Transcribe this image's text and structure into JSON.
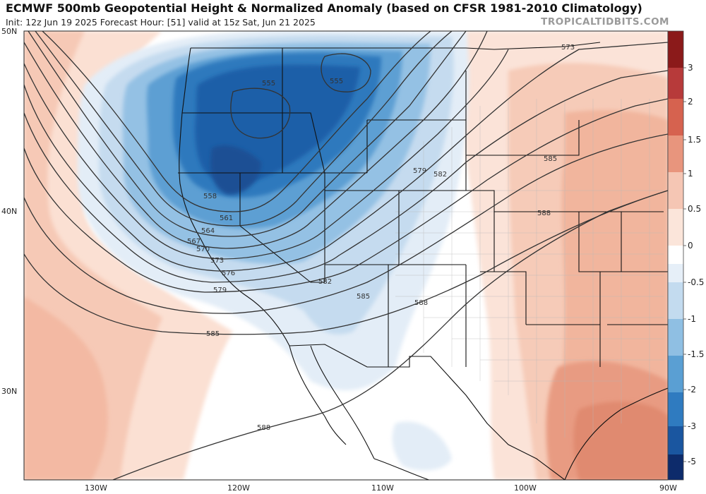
{
  "header": {
    "title": "ECMWF 500mb Geopotential Height & Normalized Anomaly (based on CFSR 1981-2010 Climatology)",
    "subtitle": "Init: 12z Jun 19 2025   Forecast Hour: [51]   valid at 15z Sat, Jun 21 2025",
    "brand": "TROPICALTIDBITS.COM"
  },
  "map": {
    "lat_labels": [
      "50N",
      "40N",
      "30N"
    ],
    "lon_labels": [
      "130W",
      "120W",
      "110W",
      "100W",
      "90W"
    ],
    "contour_labels": [
      "555",
      "555",
      "558",
      "561",
      "564",
      "567",
      "570",
      "573",
      "576",
      "579",
      "582",
      "579",
      "582",
      "585",
      "588",
      "585",
      "585",
      "588",
      "588",
      "573"
    ]
  },
  "colorbar": {
    "labels": [
      "3",
      "2",
      "1.5",
      "1",
      "0.5",
      "0",
      "-0.5",
      "-1",
      "-1.5",
      "-2",
      "-3",
      "-5"
    ],
    "colors": {
      "c_pos3": "#8b1a1a",
      "c_pos2": "#b73a3a",
      "c_pos15": "#d6624f",
      "c_pos1": "#e8957d",
      "c_pos05": "#f5c6b4",
      "c_pos0": "#fbe5da",
      "c_neg0": "#e6eff8",
      "c_neg05": "#c3dbef",
      "c_neg1": "#8fbfe3",
      "c_neg15": "#5a9fd3",
      "c_neg2": "#2f7bc0",
      "c_neg3": "#1a56a0",
      "c_neg5": "#0d2b6b"
    }
  }
}
